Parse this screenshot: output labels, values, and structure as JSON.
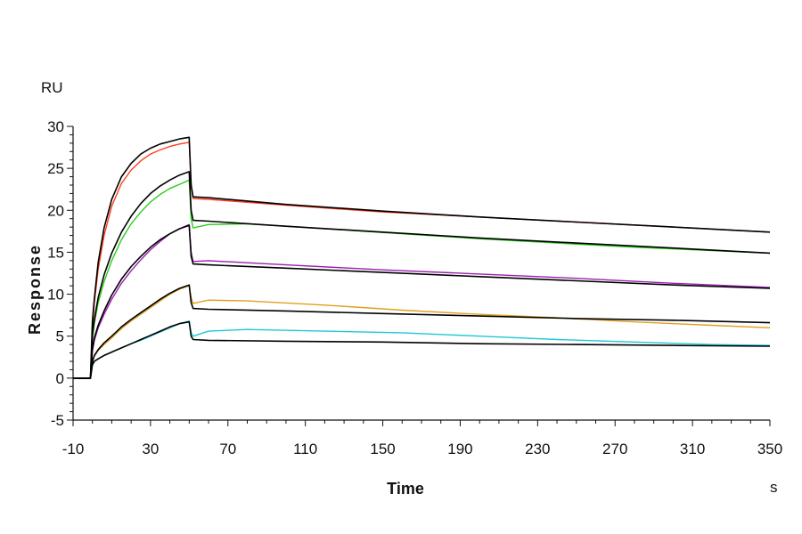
{
  "chart_data": {
    "type": "line",
    "title": "",
    "xlabel": "Time",
    "ylabel": "Response",
    "x_unit": "s",
    "y_unit": "RU",
    "xlim": [
      -10,
      350
    ],
    "ylim": [
      -5,
      30
    ],
    "x_ticks": [
      -10,
      30,
      70,
      110,
      150,
      190,
      230,
      270,
      310,
      350
    ],
    "y_ticks": [
      -5,
      0,
      5,
      10,
      15,
      20,
      25,
      30
    ],
    "grid": false,
    "legend": "none",
    "series": [
      {
        "color": "#ff3b1f",
        "x": [
          -10,
          -1,
          0,
          1,
          3,
          6,
          10,
          15,
          20,
          25,
          30,
          35,
          40,
          45,
          50,
          51,
          52,
          60,
          100,
          150,
          200,
          250,
          300,
          350
        ],
        "y": [
          0,
          0,
          6,
          9,
          13,
          17,
          20.5,
          23.2,
          24.8,
          25.9,
          26.7,
          27.2,
          27.6,
          27.9,
          28.1,
          23,
          21.4,
          21.3,
          20.6,
          19.8,
          19.2,
          18.6,
          18,
          17.4
        ]
      },
      {
        "color": "#2ecc1f",
        "x": [
          -10,
          -1,
          0,
          1,
          3,
          6,
          10,
          15,
          20,
          25,
          30,
          35,
          40,
          45,
          50,
          51,
          52,
          60,
          80,
          120,
          160,
          200,
          240,
          280,
          320,
          350
        ],
        "y": [
          0,
          0,
          4.5,
          6.5,
          9,
          11.5,
          14,
          16.5,
          18.4,
          19.8,
          21,
          21.9,
          22.6,
          23.1,
          23.6,
          19,
          17.9,
          18.3,
          18.4,
          17.8,
          17.2,
          16.6,
          16.1,
          15.6,
          15.2,
          14.9
        ]
      },
      {
        "color": "#9b1fb0",
        "x": [
          -10,
          -1,
          0,
          1,
          3,
          6,
          10,
          15,
          20,
          25,
          30,
          35,
          40,
          45,
          50,
          51,
          52,
          60,
          100,
          150,
          200,
          250,
          300,
          350
        ],
        "y": [
          0,
          0,
          3.2,
          4.5,
          6,
          7.6,
          9.4,
          11.3,
          12.8,
          14.1,
          15.3,
          16.3,
          17.2,
          17.8,
          18.3,
          15,
          13.9,
          14,
          13.5,
          12.9,
          12.4,
          11.9,
          11.3,
          10.8
        ]
      },
      {
        "color": "#e0a020",
        "x": [
          -10,
          -1,
          0,
          1,
          3,
          6,
          10,
          15,
          20,
          25,
          30,
          35,
          40,
          45,
          50,
          51,
          52,
          60,
          80,
          120,
          160,
          200,
          240,
          280,
          320,
          350
        ],
        "y": [
          0,
          0,
          1.8,
          2.6,
          3.3,
          4,
          4.8,
          5.9,
          6.8,
          7.6,
          8.4,
          9.2,
          10,
          10.6,
          11,
          9.6,
          8.9,
          9.3,
          9.2,
          8.7,
          8.1,
          7.6,
          7.2,
          6.7,
          6.3,
          6
        ]
      },
      {
        "color": "#1ec8d8",
        "x": [
          -10,
          -1,
          0,
          1,
          3,
          6,
          10,
          15,
          20,
          25,
          30,
          35,
          40,
          45,
          50,
          51,
          52,
          60,
          80,
          120,
          160,
          200,
          240,
          280,
          320,
          350
        ],
        "y": [
          0,
          0,
          1.5,
          2,
          2.3,
          2.7,
          3.1,
          3.6,
          4.1,
          4.5,
          5,
          5.5,
          6,
          6.5,
          6.8,
          5.4,
          5,
          5.6,
          5.8,
          5.6,
          5.4,
          5,
          4.6,
          4.3,
          4,
          3.9
        ]
      },
      {
        "color": "#000000",
        "x": [
          -10,
          -1,
          0,
          1,
          3,
          6,
          10,
          15,
          20,
          25,
          30,
          35,
          40,
          45,
          50,
          51,
          52,
          60,
          100,
          150,
          200,
          250,
          300,
          350
        ],
        "y": [
          0,
          0,
          6.8,
          9.5,
          13.8,
          17.9,
          21.3,
          24,
          25.6,
          26.7,
          27.4,
          27.9,
          28.2,
          28.5,
          28.7,
          23,
          21.6,
          21.5,
          20.7,
          19.9,
          19.2,
          18.6,
          18,
          17.4
        ]
      },
      {
        "color": "#000000",
        "x": [
          -10,
          -1,
          0,
          1,
          3,
          6,
          10,
          15,
          20,
          25,
          30,
          35,
          40,
          45,
          50,
          51,
          52,
          60,
          100,
          150,
          200,
          250,
          300,
          350
        ],
        "y": [
          0,
          0,
          5.2,
          7,
          9.6,
          12.3,
          14.9,
          17.4,
          19.3,
          20.8,
          22,
          22.9,
          23.6,
          24.2,
          24.6,
          20,
          18.8,
          18.7,
          18.1,
          17.4,
          16.7,
          16.1,
          15.5,
          14.9
        ]
      },
      {
        "color": "#000000",
        "x": [
          -10,
          -1,
          0,
          1,
          3,
          6,
          10,
          15,
          20,
          25,
          30,
          35,
          40,
          45,
          50,
          51,
          52,
          60,
          100,
          150,
          200,
          250,
          300,
          350
        ],
        "y": [
          0,
          0,
          3.5,
          4.8,
          6.3,
          8,
          9.9,
          11.8,
          13.3,
          14.5,
          15.6,
          16.5,
          17.2,
          17.8,
          18.2,
          14.5,
          13.6,
          13.5,
          13.1,
          12.6,
          12.1,
          11.6,
          11.1,
          10.7
        ]
      },
      {
        "color": "#000000",
        "x": [
          -10,
          -1,
          0,
          1,
          3,
          6,
          10,
          15,
          20,
          25,
          30,
          35,
          40,
          45,
          50,
          51,
          52,
          60,
          100,
          150,
          200,
          250,
          300,
          350
        ],
        "y": [
          0,
          0,
          2,
          2.7,
          3.4,
          4.2,
          5,
          6.1,
          7,
          7.8,
          8.6,
          9.4,
          10.1,
          10.7,
          11.1,
          9,
          8.3,
          8.2,
          8,
          7.7,
          7.4,
          7.1,
          6.9,
          6.6
        ]
      },
      {
        "color": "#000000",
        "x": [
          -10,
          -1,
          0,
          1,
          3,
          6,
          10,
          15,
          20,
          25,
          30,
          35,
          40,
          45,
          50,
          51,
          52,
          60,
          100,
          150,
          200,
          250,
          300,
          350
        ],
        "y": [
          0,
          0,
          1.6,
          2,
          2.3,
          2.7,
          3.1,
          3.6,
          4.1,
          4.6,
          5.1,
          5.6,
          6.1,
          6.5,
          6.7,
          5,
          4.6,
          4.5,
          4.4,
          4.3,
          4.1,
          4,
          3.9,
          3.8
        ]
      }
    ]
  }
}
